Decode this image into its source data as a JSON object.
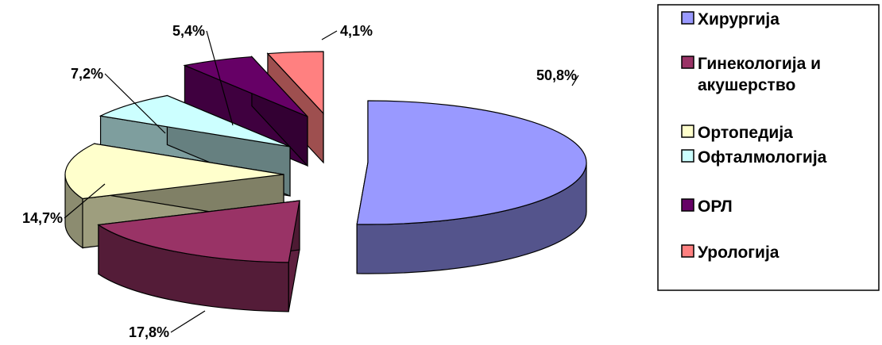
{
  "chart_data": {
    "type": "pie",
    "three_d": true,
    "exploded": true,
    "categories": [
      "Хирургија",
      "Гинекологија и акушерство",
      "Ортопедија",
      "Офталмологија",
      "ОРЛ",
      "Урологија"
    ],
    "values": [
      50.8,
      17.8,
      14.7,
      7.2,
      5.4,
      4.1
    ],
    "data_labels": [
      "50,8%",
      "17,8%",
      "14,7%",
      "7,2%",
      "5,4%",
      "4,1%"
    ],
    "colors": [
      "#9999ff",
      "#993366",
      "#ffffcc",
      "#ccffff",
      "#660066",
      "#ff8080"
    ],
    "legend": {
      "position": "right",
      "entries": [
        {
          "lines": [
            "Хирургија"
          ]
        },
        {
          "lines": [
            "Гинекологија и",
            "акушерство"
          ]
        },
        {
          "lines": [
            "Ортопедија"
          ]
        },
        {
          "lines": [
            "Офталмологија"
          ]
        },
        {
          "lines": [
            "ОРЛ"
          ]
        },
        {
          "lines": [
            "Урологија"
          ]
        }
      ]
    }
  }
}
